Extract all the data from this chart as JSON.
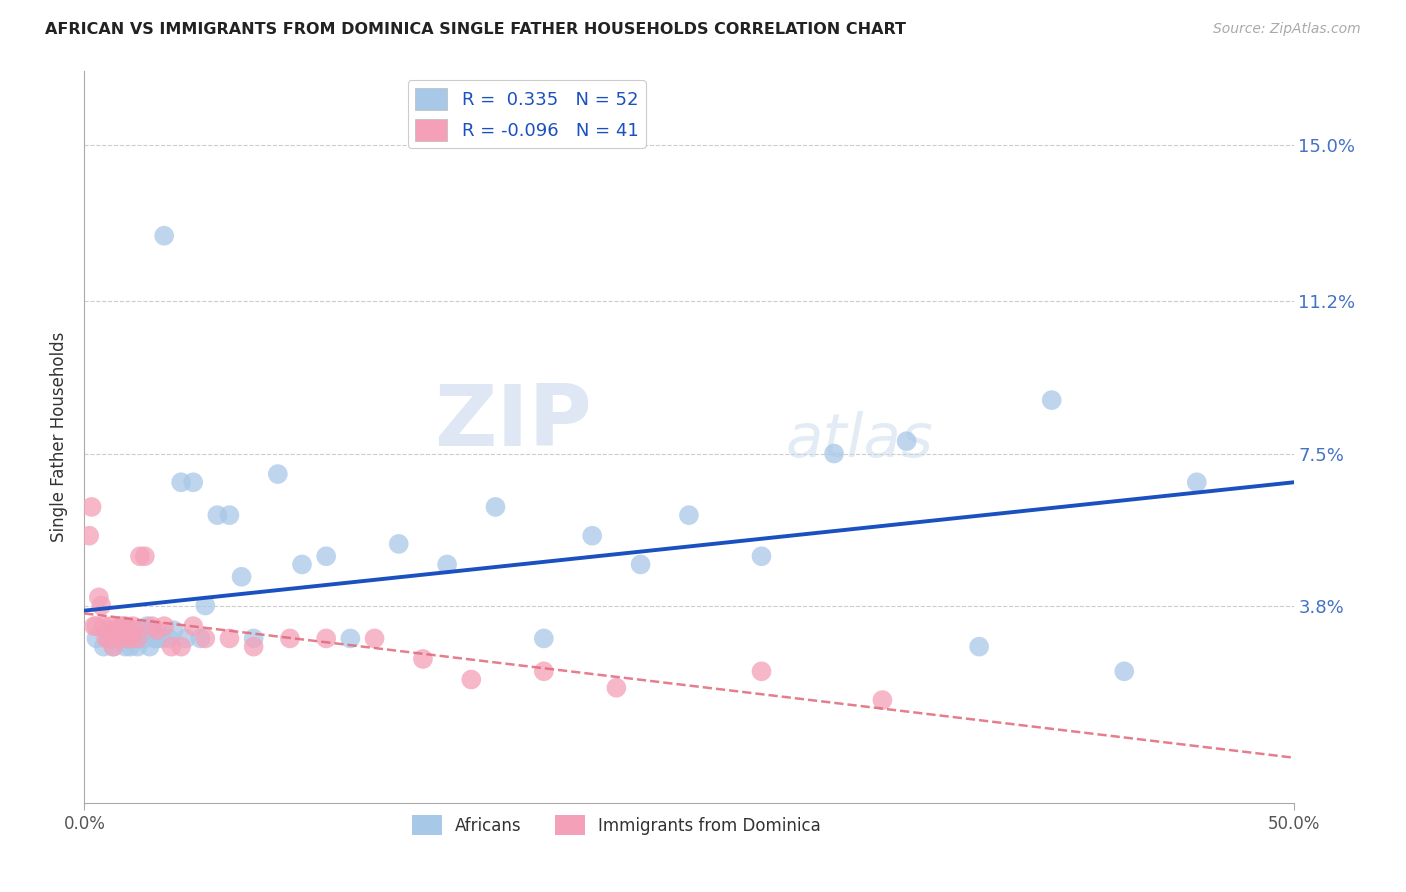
{
  "title": "AFRICAN VS IMMIGRANTS FROM DOMINICA SINGLE FATHER HOUSEHOLDS CORRELATION CHART",
  "source": "Source: ZipAtlas.com",
  "ylabel": "Single Father Households",
  "y_ticks": [
    0.0,
    0.038,
    0.075,
    0.112,
    0.15
  ],
  "y_tick_labels": [
    "",
    "3.8%",
    "7.5%",
    "11.2%",
    "15.0%"
  ],
  "x_lim": [
    0.0,
    0.5
  ],
  "y_lim": [
    -0.01,
    0.168
  ],
  "african_color": "#a8c8e8",
  "dominica_color": "#f4a0b8",
  "trend_african_color": "#1a50c0",
  "trend_dominica_color": "#e06878",
  "background_color": "#ffffff",
  "watermark_zip": "ZIP",
  "watermark_atlas": "atlas",
  "african_x": [
    0.005,
    0.008,
    0.01,
    0.012,
    0.013,
    0.015,
    0.016,
    0.017,
    0.018,
    0.019,
    0.02,
    0.021,
    0.022,
    0.023,
    0.024,
    0.025,
    0.026,
    0.027,
    0.028,
    0.029,
    0.03,
    0.032,
    0.033,
    0.035,
    0.037,
    0.04,
    0.042,
    0.045,
    0.048,
    0.05,
    0.055,
    0.06,
    0.065,
    0.07,
    0.08,
    0.09,
    0.1,
    0.11,
    0.13,
    0.15,
    0.17,
    0.19,
    0.21,
    0.23,
    0.25,
    0.28,
    0.31,
    0.34,
    0.37,
    0.4,
    0.43,
    0.46
  ],
  "african_y": [
    0.03,
    0.028,
    0.032,
    0.028,
    0.03,
    0.03,
    0.033,
    0.028,
    0.03,
    0.028,
    0.032,
    0.03,
    0.028,
    0.03,
    0.032,
    0.03,
    0.033,
    0.028,
    0.032,
    0.03,
    0.03,
    0.03,
    0.128,
    0.03,
    0.032,
    0.068,
    0.03,
    0.068,
    0.03,
    0.038,
    0.06,
    0.06,
    0.045,
    0.03,
    0.07,
    0.048,
    0.05,
    0.03,
    0.053,
    0.048,
    0.062,
    0.03,
    0.055,
    0.048,
    0.06,
    0.05,
    0.075,
    0.078,
    0.028,
    0.088,
    0.022,
    0.068
  ],
  "dominica_x": [
    0.002,
    0.003,
    0.004,
    0.005,
    0.006,
    0.007,
    0.008,
    0.009,
    0.01,
    0.011,
    0.012,
    0.013,
    0.014,
    0.015,
    0.016,
    0.017,
    0.018,
    0.019,
    0.02,
    0.021,
    0.022,
    0.023,
    0.025,
    0.028,
    0.03,
    0.033,
    0.036,
    0.04,
    0.045,
    0.05,
    0.06,
    0.07,
    0.085,
    0.1,
    0.12,
    0.14,
    0.16,
    0.19,
    0.22,
    0.28,
    0.33
  ],
  "dominica_y": [
    0.055,
    0.062,
    0.033,
    0.033,
    0.04,
    0.038,
    0.033,
    0.03,
    0.03,
    0.033,
    0.028,
    0.032,
    0.03,
    0.033,
    0.032,
    0.033,
    0.03,
    0.03,
    0.033,
    0.032,
    0.03,
    0.05,
    0.05,
    0.033,
    0.032,
    0.033,
    0.028,
    0.028,
    0.033,
    0.03,
    0.03,
    0.028,
    0.03,
    0.03,
    0.03,
    0.025,
    0.02,
    0.022,
    0.018,
    0.022,
    0.015
  ]
}
